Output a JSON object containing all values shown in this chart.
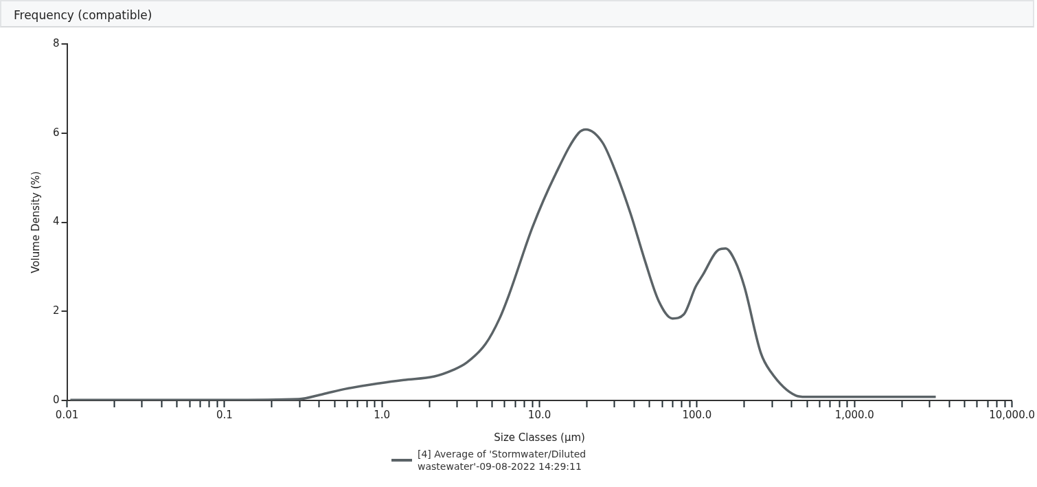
{
  "chart_data": {
    "type": "line",
    "title": "Frequency (compatible)",
    "xlabel": "Size Classes (µm)",
    "ylabel": "Volume Density (%)",
    "log": "x",
    "legend": "bottom",
    "grid": false,
    "marker": "none",
    "line_style": "solid",
    "xlim": [
      0.01,
      10000
    ],
    "ylim": [
      0,
      8
    ],
    "xticks": [
      {
        "value": 0.01,
        "label": "0.01"
      },
      {
        "value": 0.02,
        "label": null
      },
      {
        "value": 0.03,
        "label": null
      },
      {
        "value": 0.04,
        "label": null
      },
      {
        "value": 0.05,
        "label": null
      },
      {
        "value": 0.06,
        "label": null
      },
      {
        "value": 0.07,
        "label": null
      },
      {
        "value": 0.08,
        "label": null
      },
      {
        "value": 0.09,
        "label": null
      },
      {
        "value": 0.1,
        "label": "0.1"
      },
      {
        "value": 0.2,
        "label": null
      },
      {
        "value": 0.3,
        "label": null
      },
      {
        "value": 0.4,
        "label": null
      },
      {
        "value": 0.5,
        "label": null
      },
      {
        "value": 0.6,
        "label": null
      },
      {
        "value": 0.7,
        "label": null
      },
      {
        "value": 0.8,
        "label": null
      },
      {
        "value": 0.9,
        "label": null
      },
      {
        "value": 1,
        "label": "1.0"
      },
      {
        "value": 2,
        "label": null
      },
      {
        "value": 3,
        "label": null
      },
      {
        "value": 4,
        "label": null
      },
      {
        "value": 5,
        "label": null
      },
      {
        "value": 6,
        "label": null
      },
      {
        "value": 7,
        "label": null
      },
      {
        "value": 8,
        "label": null
      },
      {
        "value": 9,
        "label": null
      },
      {
        "value": 10,
        "label": "10.0"
      },
      {
        "value": 20,
        "label": null
      },
      {
        "value": 30,
        "label": null
      },
      {
        "value": 40,
        "label": null
      },
      {
        "value": 50,
        "label": null
      },
      {
        "value": 60,
        "label": null
      },
      {
        "value": 70,
        "label": null
      },
      {
        "value": 80,
        "label": null
      },
      {
        "value": 90,
        "label": null
      },
      {
        "value": 100,
        "label": "100.0"
      },
      {
        "value": 200,
        "label": null
      },
      {
        "value": 300,
        "label": null
      },
      {
        "value": 400,
        "label": null
      },
      {
        "value": 500,
        "label": null
      },
      {
        "value": 600,
        "label": null
      },
      {
        "value": 700,
        "label": null
      },
      {
        "value": 800,
        "label": null
      },
      {
        "value": 900,
        "label": null
      },
      {
        "value": 1000,
        "label": "1,000.0"
      },
      {
        "value": 2000,
        "label": null
      },
      {
        "value": 3000,
        "label": null
      },
      {
        "value": 4000,
        "label": null
      },
      {
        "value": 5000,
        "label": null
      },
      {
        "value": 6000,
        "label": null
      },
      {
        "value": 7000,
        "label": null
      },
      {
        "value": 8000,
        "label": null
      },
      {
        "value": 9000,
        "label": null
      },
      {
        "value": 10000,
        "label": "10,000.0"
      }
    ],
    "yticks": [
      0,
      2,
      4,
      6,
      8
    ],
    "series": [
      {
        "name": "[4] Average of 'Stormwater/Diluted wastewater'-09-08-2022 14:29:11",
        "color": "#5b6367",
        "x": [
          0.0105,
          0.1,
          0.296,
          0.419,
          0.587,
          0.98,
          1.37,
          2.15,
          2.81,
          3.45,
          4.55,
          5.58,
          6.37,
          9.03,
          12.65,
          17.7,
          19.7,
          25.1,
          29.6,
          37.8,
          46.4,
          57,
          69.9,
          82.4,
          98,
          108.6,
          137,
          152,
          175,
          200,
          254,
          293,
          424,
          488,
          3280
        ],
        "values": [
          0.01,
          0.01,
          0.03,
          0.14,
          0.26,
          0.39,
          0.46,
          0.54,
          0.68,
          0.85,
          1.27,
          1.84,
          2.35,
          3.89,
          5.08,
          6.0,
          6.08,
          5.79,
          5.24,
          4.2,
          3.17,
          2.24,
          1.84,
          1.93,
          2.55,
          2.81,
          3.38,
          3.41,
          3.12,
          2.55,
          1.07,
          0.65,
          0.11,
          0.08,
          0.08
        ]
      }
    ]
  }
}
